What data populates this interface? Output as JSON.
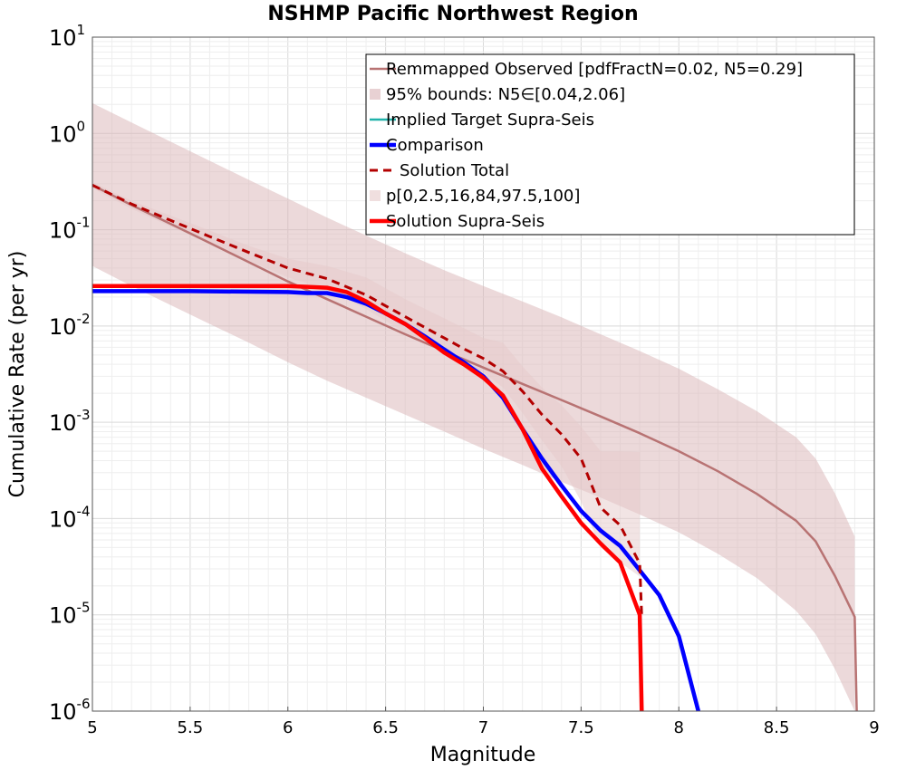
{
  "chart_data": {
    "type": "line",
    "title": "NSHMP Pacific Northwest Region",
    "xlabel": "Magnitude",
    "ylabel": "Cumulative Rate (per yr)",
    "xlim": [
      5,
      9
    ],
    "ylim": [
      1e-06,
      10
    ],
    "yscale": "log",
    "grid": true,
    "legend_position": "top-right",
    "x_ticks": [
      "5",
      "5.5",
      "6",
      "6.5",
      "7",
      "7.5",
      "8",
      "8.5",
      "9"
    ],
    "y_tick_bases": [
      "10",
      "10",
      "10",
      "10",
      "10",
      "10",
      "10",
      "10"
    ],
    "y_tick_exponents": [
      "-6",
      "-5",
      "-4",
      "-3",
      "-2",
      "-1",
      "0",
      "1"
    ],
    "series": [
      {
        "name": "Remmapped Observed [pdfFractN=0.02, N5=0.29]",
        "kind": "line",
        "color": "#b87373",
        "x": [
          5.0,
          5.2,
          5.4,
          5.6,
          5.8,
          6.0,
          6.2,
          6.4,
          6.6,
          6.8,
          7.0,
          7.2,
          7.4,
          7.6,
          7.8,
          8.0,
          8.2,
          8.4,
          8.6,
          8.7,
          8.8,
          8.9,
          8.91
        ],
        "y": [
          0.29,
          0.18,
          0.115,
          0.073,
          0.046,
          0.029,
          0.019,
          0.0125,
          0.0082,
          0.0055,
          0.0037,
          0.0025,
          0.0017,
          0.00115,
          0.00077,
          0.0005,
          0.00031,
          0.00018,
          9.5e-05,
          5.8e-05,
          2.5e-05,
          9.5e-06,
          1e-06
        ]
      },
      {
        "name": "95% bounds: N5∈[0.04,2.06]",
        "kind": "band",
        "color": "#d9b3b5",
        "x": [
          5.0,
          5.2,
          5.4,
          5.6,
          5.8,
          6.0,
          6.2,
          6.4,
          6.6,
          6.8,
          7.0,
          7.2,
          7.4,
          7.6,
          7.8,
          8.0,
          8.2,
          8.4,
          8.6,
          8.7,
          8.8,
          8.9
        ],
        "lower": [
          0.042,
          0.026,
          0.0165,
          0.0105,
          0.0067,
          0.0042,
          0.0027,
          0.0018,
          0.0012,
          0.0008,
          0.00053,
          0.00036,
          0.00024,
          0.000165,
          0.00011,
          7.2e-05,
          4.3e-05,
          2.4e-05,
          1.1e-05,
          6.3e-06,
          2.7e-06,
          9.4e-07
        ],
        "upper": [
          2.06,
          1.3,
          0.82,
          0.52,
          0.33,
          0.21,
          0.134,
          0.087,
          0.057,
          0.038,
          0.026,
          0.018,
          0.0123,
          0.0082,
          0.0055,
          0.0036,
          0.0022,
          0.0013,
          0.0007,
          0.00042,
          0.00018,
          6.5e-05
        ]
      },
      {
        "name": "Implied Target Supra-Seis",
        "kind": "line",
        "color": "#20b2aa",
        "x": [],
        "y": []
      },
      {
        "name": "Comparison",
        "kind": "line",
        "color": "#0000ff",
        "x": [
          5.0,
          5.5,
          6.0,
          6.1,
          6.2,
          6.3,
          6.4,
          6.5,
          6.6,
          6.7,
          6.8,
          6.9,
          7.0,
          7.1,
          7.2,
          7.3,
          7.4,
          7.5,
          7.6,
          7.7,
          7.8,
          7.9,
          8.0,
          8.1
        ],
        "y": [
          0.023,
          0.023,
          0.0225,
          0.022,
          0.022,
          0.02,
          0.017,
          0.0135,
          0.0105,
          0.0078,
          0.0057,
          0.0042,
          0.003,
          0.0018,
          0.00085,
          0.00042,
          0.00022,
          0.00012,
          7.5e-05,
          5.2e-05,
          2.9e-05,
          1.6e-05,
          6e-06,
          1e-06
        ]
      },
      {
        "name": "Solution Total",
        "kind": "dashed-line",
        "color": "#b30000",
        "x": [
          5.0,
          5.2,
          5.4,
          5.6,
          5.8,
          6.0,
          6.2,
          6.4,
          6.6,
          6.8,
          6.9,
          7.0,
          7.1,
          7.2,
          7.3,
          7.4,
          7.5,
          7.6,
          7.7,
          7.8,
          7.81
        ],
        "y": [
          0.29,
          0.185,
          0.125,
          0.085,
          0.058,
          0.04,
          0.031,
          0.021,
          0.0125,
          0.0075,
          0.0058,
          0.0046,
          0.0034,
          0.0021,
          0.0012,
          0.00075,
          0.00042,
          0.00013,
          8.5e-05,
          3.4e-05,
          9.5e-06
        ]
      },
      {
        "name": "p[0,2.5,16,84,97.5,100]",
        "kind": "band",
        "color": "#e6c9c9",
        "x": [
          5.0,
          5.2,
          5.4,
          5.6,
          5.8,
          6.0,
          6.2,
          6.4,
          6.6,
          6.8,
          6.9,
          7.0,
          7.1,
          7.2,
          7.3,
          7.4,
          7.5,
          7.6,
          7.7,
          7.8
        ],
        "lower": [
          0.27,
          0.165,
          0.108,
          0.072,
          0.048,
          0.032,
          0.024,
          0.015,
          0.0085,
          0.0055,
          0.0043,
          0.0033,
          0.0023,
          0.00125,
          0.00065,
          0.00035,
          0.00015,
          5e-05,
          3.5e-05,
          2.5e-05
        ],
        "upper": [
          0.31,
          0.2,
          0.14,
          0.098,
          0.068,
          0.05,
          0.042,
          0.032,
          0.019,
          0.012,
          0.0095,
          0.0075,
          0.0067,
          0.0038,
          0.0023,
          0.0015,
          0.0009,
          0.0005,
          0.0005,
          0.00049
        ]
      },
      {
        "name": "Solution Supra-Seis",
        "kind": "line",
        "color": "#ff0000",
        "x": [
          5.0,
          5.5,
          6.0,
          6.1,
          6.2,
          6.3,
          6.4,
          6.5,
          6.6,
          6.7,
          6.8,
          6.9,
          7.0,
          7.1,
          7.2,
          7.3,
          7.4,
          7.5,
          7.6,
          7.7,
          7.8,
          7.81
        ],
        "y": [
          0.026,
          0.026,
          0.026,
          0.0255,
          0.025,
          0.0225,
          0.018,
          0.0135,
          0.0105,
          0.0075,
          0.0053,
          0.004,
          0.0029,
          0.0019,
          0.00085,
          0.00033,
          0.00017,
          9e-05,
          5.5e-05,
          3.5e-05,
          1e-05,
          1e-06
        ]
      }
    ]
  }
}
